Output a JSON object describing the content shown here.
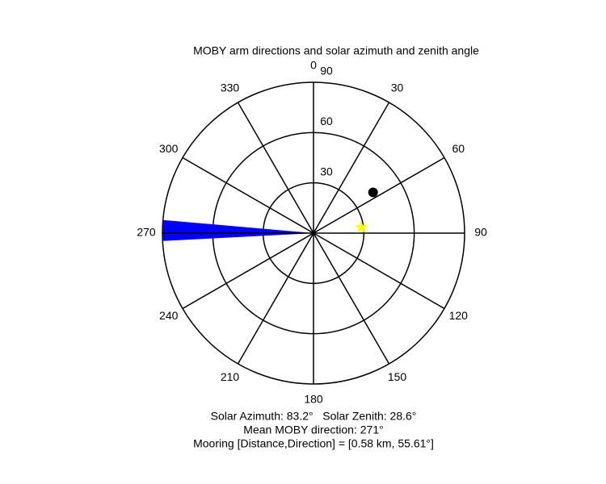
{
  "chart_data": {
    "type": "polar",
    "title": "MOBY arm directions and solar azimuth and zenith angle",
    "thetaticks": [
      0,
      30,
      60,
      90,
      120,
      150,
      180,
      210,
      240,
      270,
      300,
      330
    ],
    "rlim": [
      0,
      90
    ],
    "rticks": [
      30,
      60,
      90
    ],
    "direction": "clockwise",
    "zero": "north",
    "wedge": {
      "theta": [
        267,
        275
      ],
      "r": 90,
      "color": "#0000ff"
    },
    "points": [
      {
        "theta": 55.61,
        "r": 43,
        "color": "#000000",
        "marker": "circle"
      },
      {
        "theta": 83.2,
        "r": 28.6,
        "color": "#ffff00",
        "marker": "star"
      }
    ],
    "annotations": [
      "Solar Azimuth: 83.2°   Solar Zenith: 28.6°",
      "Mean MOBY direction: 271°",
      "Mooring [Distance,Direction] = [0.58 km, 55.61°]"
    ]
  }
}
